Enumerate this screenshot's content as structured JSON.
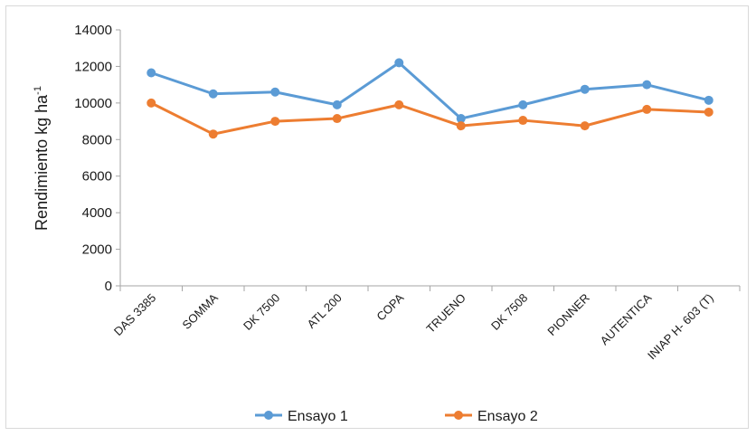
{
  "chart_data": {
    "type": "line",
    "categories": [
      "DAS 3385",
      "SOMMA",
      "DK 7500",
      "ATL 200",
      "COPA",
      "TRUENO",
      "DK 7508",
      "PIONNER",
      "AUTENTICA",
      "INIAP H- 603 (T)"
    ],
    "series": [
      {
        "name": "Ensayo 1",
        "color": "#5b9bd5",
        "values": [
          11650,
          10500,
          10600,
          9900,
          12200,
          9150,
          9900,
          10750,
          11000,
          10150
        ]
      },
      {
        "name": "Ensayo 2",
        "color": "#ed7d31",
        "values": [
          10000,
          8300,
          9000,
          9150,
          9900,
          8750,
          9050,
          8750,
          9650,
          9500
        ]
      }
    ],
    "ylabel": "Rendimiento kg ha",
    "ylabel_superscript": "-1",
    "ylim": [
      0,
      14000
    ],
    "yticks": [
      "0",
      "2000",
      "4000",
      "6000",
      "8000",
      "10000",
      "12000",
      "14000"
    ],
    "grid": false,
    "legend_position": "bottom"
  }
}
